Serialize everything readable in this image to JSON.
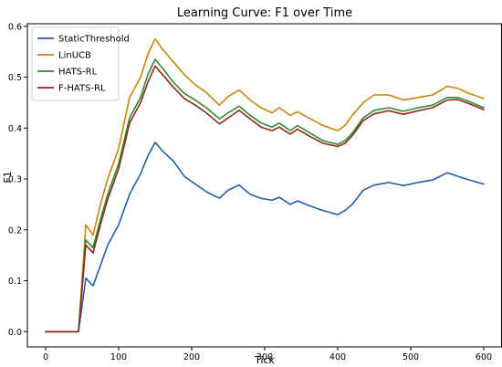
{
  "chart_data": {
    "type": "line",
    "title": "Learning Curve: F1 over Time",
    "xlabel": "Tick",
    "ylabel": "F1",
    "xlim": [
      -25,
      625
    ],
    "ylim": [
      -0.03,
      0.605
    ],
    "xticks": [
      0,
      100,
      200,
      300,
      400,
      500,
      600
    ],
    "yticks": [
      0.0,
      0.1,
      0.2,
      0.3,
      0.4,
      0.5,
      0.6
    ],
    "xtick_labels": [
      "0",
      "100",
      "200",
      "300",
      "400",
      "500",
      "600"
    ],
    "ytick_labels": [
      "0.0",
      "0.1",
      "0.2",
      "0.3",
      "0.4",
      "0.5",
      "0.6"
    ],
    "grid": false,
    "legend_position": "top-left",
    "series": [
      {
        "name": "StaticThreshold",
        "color": "#1f5fa8",
        "x": [
          0,
          45,
          55,
          65,
          75,
          85,
          100,
          115,
          130,
          140,
          150,
          160,
          175,
          190,
          205,
          220,
          238,
          250,
          265,
          280,
          295,
          310,
          320,
          335,
          345,
          360,
          380,
          400,
          410,
          420,
          435,
          450,
          470,
          490,
          510,
          530,
          550,
          565,
          580,
          600
        ],
        "y": [
          0.0,
          0.0,
          0.105,
          0.09,
          0.13,
          0.17,
          0.21,
          0.27,
          0.31,
          0.345,
          0.372,
          0.355,
          0.335,
          0.305,
          0.29,
          0.275,
          0.262,
          0.278,
          0.288,
          0.27,
          0.262,
          0.258,
          0.264,
          0.25,
          0.257,
          0.248,
          0.238,
          0.23,
          0.238,
          0.25,
          0.278,
          0.288,
          0.293,
          0.287,
          0.293,
          0.298,
          0.312,
          0.305,
          0.298,
          0.29
        ]
      },
      {
        "name": "LinUCB",
        "color": "#c8860a",
        "x": [
          0,
          45,
          55,
          65,
          75,
          85,
          100,
          115,
          130,
          140,
          150,
          160,
          175,
          190,
          205,
          220,
          238,
          250,
          265,
          280,
          295,
          310,
          320,
          335,
          345,
          360,
          380,
          400,
          410,
          420,
          435,
          450,
          470,
          490,
          510,
          530,
          550,
          565,
          580,
          600
        ],
        "y": [
          0.0,
          0.0,
          0.21,
          0.19,
          0.25,
          0.3,
          0.36,
          0.46,
          0.5,
          0.545,
          0.575,
          0.555,
          0.53,
          0.505,
          0.485,
          0.47,
          0.445,
          0.462,
          0.475,
          0.455,
          0.44,
          0.43,
          0.44,
          0.425,
          0.432,
          0.42,
          0.405,
          0.395,
          0.405,
          0.425,
          0.45,
          0.465,
          0.465,
          0.455,
          0.46,
          0.465,
          0.482,
          0.478,
          0.468,
          0.458
        ]
      },
      {
        "name": "HATS-RL",
        "color": "#2e8b2e",
        "x": [
          0,
          45,
          55,
          65,
          75,
          85,
          100,
          115,
          130,
          140,
          150,
          160,
          175,
          190,
          205,
          220,
          238,
          250,
          265,
          280,
          295,
          310,
          320,
          335,
          345,
          360,
          380,
          400,
          410,
          420,
          435,
          450,
          470,
          490,
          510,
          530,
          550,
          565,
          580,
          600
        ],
        "y": [
          0.0,
          0.0,
          0.18,
          0.165,
          0.22,
          0.27,
          0.33,
          0.42,
          0.46,
          0.505,
          0.535,
          0.518,
          0.49,
          0.468,
          0.455,
          0.44,
          0.418,
          0.43,
          0.443,
          0.425,
          0.41,
          0.402,
          0.41,
          0.395,
          0.405,
          0.392,
          0.375,
          0.368,
          0.375,
          0.39,
          0.42,
          0.435,
          0.44,
          0.433,
          0.44,
          0.445,
          0.46,
          0.46,
          0.452,
          0.44
        ]
      },
      {
        "name": "F-HATS-RL",
        "color": "#8b2a1a",
        "x": [
          0,
          45,
          55,
          65,
          75,
          85,
          100,
          115,
          130,
          140,
          150,
          160,
          175,
          190,
          205,
          220,
          238,
          250,
          265,
          280,
          295,
          310,
          320,
          335,
          345,
          360,
          380,
          400,
          410,
          420,
          435,
          450,
          470,
          490,
          510,
          530,
          550,
          565,
          580,
          600
        ],
        "y": [
          0.0,
          0.0,
          0.17,
          0.155,
          0.21,
          0.26,
          0.32,
          0.41,
          0.45,
          0.49,
          0.522,
          0.505,
          0.48,
          0.458,
          0.445,
          0.43,
          0.408,
          0.42,
          0.435,
          0.418,
          0.402,
          0.395,
          0.402,
          0.388,
          0.398,
          0.385,
          0.37,
          0.364,
          0.37,
          0.385,
          0.415,
          0.428,
          0.434,
          0.427,
          0.434,
          0.44,
          0.455,
          0.456,
          0.448,
          0.436
        ]
      }
    ]
  }
}
